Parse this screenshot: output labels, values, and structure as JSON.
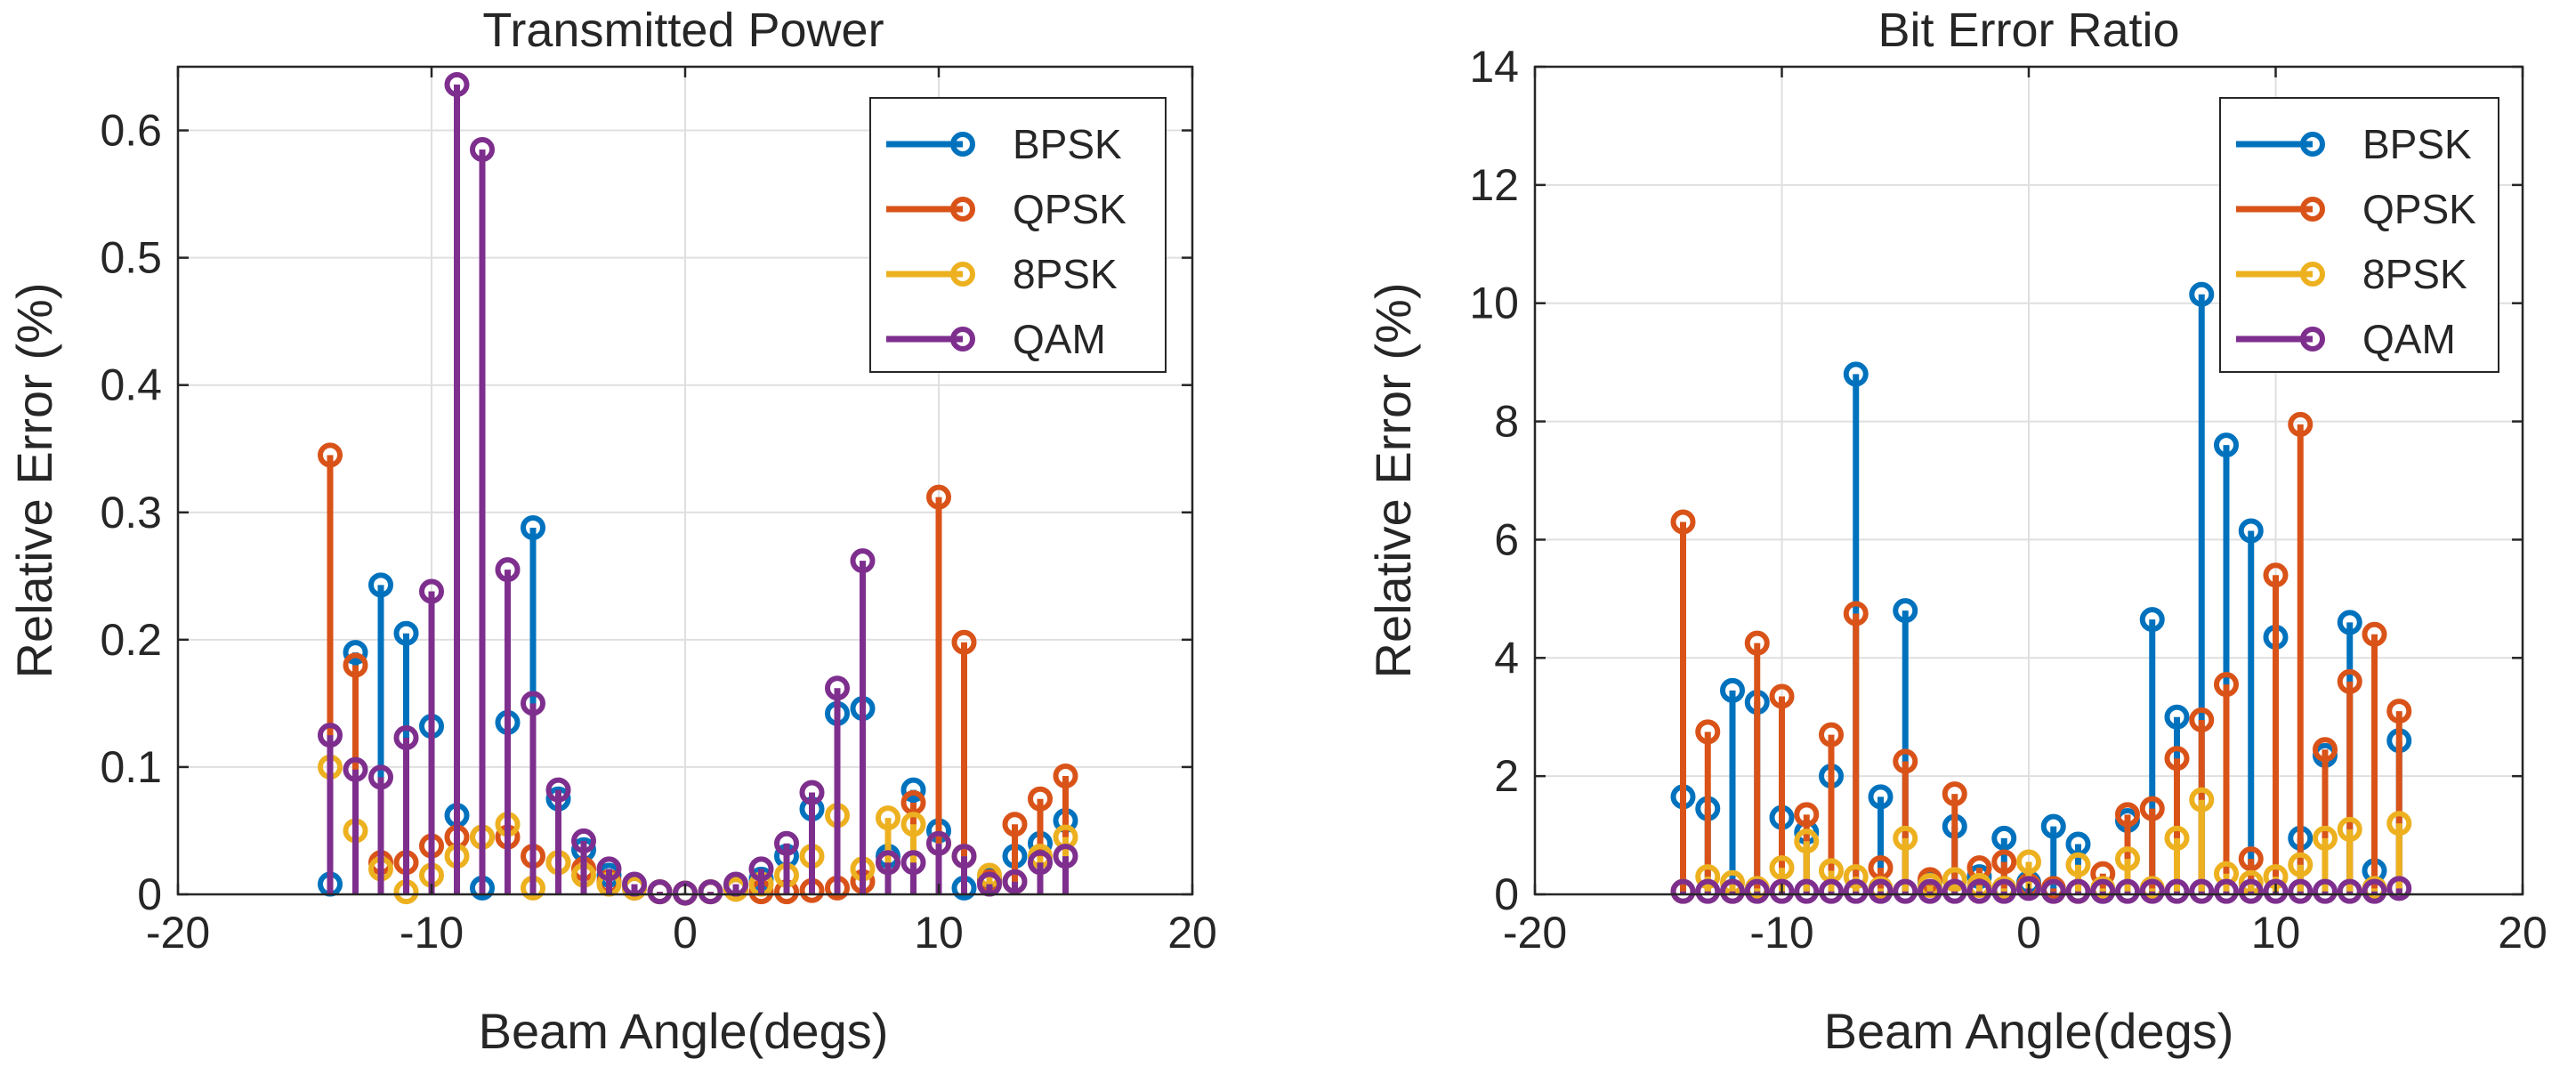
{
  "chart_data": [
    {
      "type": "stem",
      "title": "Transmitted Power",
      "xlabel": "Beam Angle(degs)",
      "ylabel": "Relative Error (%)",
      "xlim": [
        -20,
        20
      ],
      "ylim": [
        0,
        0.65
      ],
      "xticks": [
        -20,
        -10,
        0,
        10,
        20
      ],
      "yticks": [
        0,
        0.1,
        0.2,
        0.3,
        0.4,
        0.5,
        0.6
      ],
      "ytick_labels": [
        "0",
        "0.1",
        "0.2",
        "0.3",
        "0.4",
        "0.5",
        "0.6"
      ],
      "grid": true,
      "legend_position": "top-right",
      "x": [
        -14,
        -13,
        -12,
        -11,
        -10,
        -9,
        -8,
        -7,
        -6,
        -5,
        -4,
        -3,
        -2,
        -1,
        0,
        1,
        2,
        3,
        4,
        5,
        6,
        7,
        8,
        9,
        10,
        11,
        12,
        13,
        14,
        15
      ],
      "series": [
        {
          "name": "BPSK",
          "color": "#0072BD",
          "values": [
            0.008,
            0.19,
            0.243,
            0.205,
            0.132,
            0.062,
            0.005,
            0.135,
            0.288,
            0.075,
            0.035,
            0.015,
            0.005,
            0.002,
            0.001,
            0.002,
            0.005,
            0.012,
            0.03,
            0.067,
            0.142,
            0.146,
            0.03,
            0.082,
            0.05,
            0.005,
            0.012,
            0.03,
            0.04,
            0.058
          ]
        },
        {
          "name": "QPSK",
          "color": "#D95319",
          "values": [
            0.345,
            0.18,
            0.025,
            0.025,
            0.038,
            0.045,
            0.045,
            0.045,
            0.03,
            0.025,
            0.02,
            0.01,
            0.005,
            0.002,
            0.001,
            0.002,
            0.004,
            0.002,
            0.002,
            0.003,
            0.005,
            0.01,
            0.025,
            0.072,
            0.312,
            0.198,
            0.01,
            0.055,
            0.075,
            0.093
          ]
        },
        {
          "name": "8PSK",
          "color": "#EDB120",
          "values": [
            0.1,
            0.05,
            0.02,
            0.002,
            0.015,
            0.03,
            0.045,
            0.055,
            0.005,
            0.025,
            0.015,
            0.008,
            0.005,
            0.002,
            0.001,
            0.002,
            0.004,
            0.008,
            0.015,
            0.03,
            0.062,
            0.02,
            0.06,
            0.055,
            0.04,
            0.03,
            0.015,
            0.01,
            0.03,
            0.045
          ]
        },
        {
          "name": "QAM",
          "color": "#7E2F8E",
          "values": [
            0.125,
            0.098,
            0.092,
            0.123,
            0.238,
            0.636,
            0.585,
            0.255,
            0.15,
            0.082,
            0.042,
            0.02,
            0.008,
            0.002,
            0.001,
            0.002,
            0.008,
            0.02,
            0.04,
            0.08,
            0.162,
            0.262,
            0.025,
            0.025,
            0.04,
            0.03,
            0.008,
            0.01,
            0.025,
            0.03
          ]
        }
      ]
    },
    {
      "type": "stem",
      "title": "Bit Error Ratio",
      "xlabel": "Beam Angle(degs)",
      "ylabel": "Relative Error (%)",
      "xlim": [
        -20,
        20
      ],
      "ylim": [
        0,
        14
      ],
      "xticks": [
        -20,
        -10,
        0,
        10,
        20
      ],
      "yticks": [
        0,
        2,
        4,
        6,
        8,
        10,
        12,
        14
      ],
      "ytick_labels": [
        "0",
        "2",
        "4",
        "6",
        "8",
        "10",
        "12",
        "14"
      ],
      "grid": true,
      "legend_position": "top-right",
      "x": [
        -14,
        -13,
        -12,
        -11,
        -10,
        -9,
        -8,
        -7,
        -6,
        -5,
        -4,
        -3,
        -2,
        -1,
        0,
        1,
        2,
        3,
        4,
        5,
        6,
        7,
        8,
        9,
        10,
        11,
        12,
        13,
        14,
        15
      ],
      "series": [
        {
          "name": "BPSK",
          "color": "#0072BD",
          "values": [
            1.65,
            1.45,
            3.45,
            3.25,
            1.3,
            1.05,
            2.0,
            8.8,
            1.65,
            4.8,
            0.2,
            1.15,
            0.3,
            0.95,
            0.2,
            1.15,
            0.85,
            0.05,
            1.25,
            4.65,
            3.0,
            10.15,
            7.6,
            6.15,
            4.35,
            0.95,
            2.35,
            4.6,
            0.4,
            2.6
          ]
        },
        {
          "name": "QPSK",
          "color": "#D95319",
          "values": [
            6.3,
            2.75,
            0.05,
            4.25,
            3.35,
            1.35,
            2.7,
            4.75,
            0.45,
            2.25,
            0.25,
            1.7,
            0.45,
            0.55,
            0.15,
            0.1,
            0.05,
            0.35,
            1.35,
            1.45,
            2.3,
            2.95,
            3.55,
            0.6,
            5.4,
            7.95,
            2.45,
            3.6,
            4.4,
            3.1
          ]
        },
        {
          "name": "8PSK",
          "color": "#EDB120",
          "values": [
            0.05,
            0.3,
            0.2,
            0.1,
            0.45,
            0.9,
            0.4,
            0.3,
            0.1,
            0.95,
            0.15,
            0.25,
            0.15,
            0.1,
            0.55,
            0.05,
            0.5,
            0.1,
            0.6,
            0.1,
            0.95,
            1.6,
            0.35,
            0.2,
            0.3,
            0.5,
            0.95,
            1.1,
            0.1,
            1.2
          ]
        },
        {
          "name": "QAM",
          "color": "#7E2F8E",
          "values": [
            0.05,
            0.05,
            0.05,
            0.05,
            0.05,
            0.05,
            0.05,
            0.05,
            0.05,
            0.05,
            0.05,
            0.05,
            0.05,
            0.05,
            0.1,
            0.05,
            0.05,
            0.05,
            0.05,
            0.05,
            0.05,
            0.05,
            0.05,
            0.05,
            0.05,
            0.05,
            0.05,
            0.05,
            0.05,
            0.1
          ]
        }
      ]
    }
  ]
}
